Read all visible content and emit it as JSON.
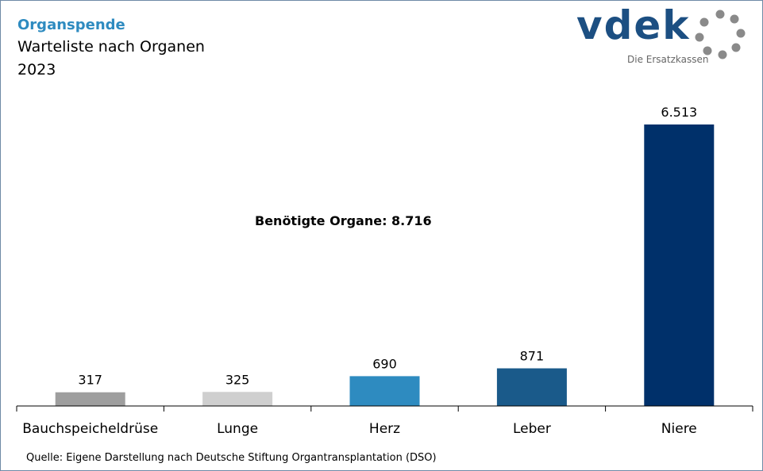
{
  "header": {
    "kicker": "Organspende",
    "subtitle": "Warteliste nach Organen",
    "year": "2023"
  },
  "logo": {
    "text": "vdek",
    "tagline": "Die Ersatzkassen",
    "icon": "vdek-ring-logo-icon"
  },
  "annotation": "Benötigte Organe: 8.716",
  "source": "Quelle: Eigene Darstellung nach Deutsche Stiftung Organtransplantation (DSO)",
  "colors": {
    "frame": "#6f8aa6",
    "kicker": "#2e8bc0",
    "logo": "#1c4f82",
    "axis": "#000000"
  },
  "chart_data": {
    "type": "bar",
    "categories": [
      "Bauchspeicheldrüse",
      "Lunge",
      "Herz",
      "Leber",
      "Niere"
    ],
    "values": [
      317,
      325,
      690,
      871,
      6513
    ],
    "value_labels": [
      "317",
      "325",
      "690",
      "871",
      "6.513"
    ],
    "bar_colors": [
      "#9e9e9e",
      "#cfcfcf",
      "#2e8bc0",
      "#1a5a8a",
      "#00306a"
    ],
    "title": "Warteliste nach Organen",
    "xlabel": "",
    "ylabel": "",
    "ylim": [
      0,
      6513
    ],
    "grid": false,
    "legend": "none"
  }
}
